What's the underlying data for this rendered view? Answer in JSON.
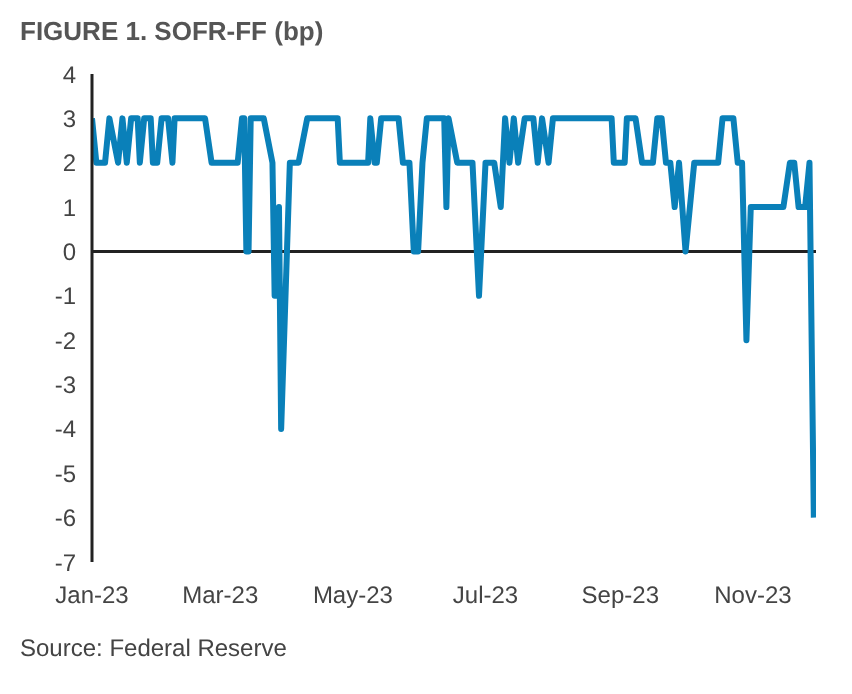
{
  "chart_data": {
    "type": "line",
    "title": "FIGURE 1. SOFR-FF (bp)",
    "x": [
      "2023-01-01",
      "2023-01-03",
      "2023-01-07",
      "2023-01-09",
      "2023-01-13",
      "2023-01-15",
      "2023-01-17",
      "2023-01-19",
      "2023-01-22",
      "2023-01-23",
      "2023-01-25",
      "2023-01-28",
      "2023-01-29",
      "2023-01-31",
      "2023-02-02",
      "2023-02-05",
      "2023-02-07",
      "2023-02-08",
      "2023-02-22",
      "2023-02-25",
      "2023-03-09",
      "2023-03-11",
      "2023-03-12",
      "2023-03-13",
      "2023-03-14",
      "2023-03-15",
      "2023-03-21",
      "2023-03-25",
      "2023-03-26",
      "2023-03-27",
      "2023-03-28",
      "2023-03-29",
      "2023-04-02",
      "2023-04-06",
      "2023-04-10",
      "2023-04-24",
      "2023-04-25",
      "2023-05-08",
      "2023-05-09",
      "2023-05-11",
      "2023-05-12",
      "2023-05-14",
      "2023-05-22",
      "2023-05-24",
      "2023-05-27",
      "2023-05-29",
      "2023-05-31",
      "2023-06-02",
      "2023-06-04",
      "2023-06-12",
      "2023-06-13",
      "2023-06-14",
      "2023-06-18",
      "2023-06-25",
      "2023-06-26",
      "2023-06-28",
      "2023-06-30",
      "2023-07-01",
      "2023-07-05",
      "2023-07-08",
      "2023-07-10",
      "2023-07-12",
      "2023-07-14",
      "2023-07-16",
      "2023-07-19",
      "2023-07-23",
      "2023-07-25",
      "2023-07-27",
      "2023-07-30",
      "2023-08-01",
      "2023-08-28",
      "2023-08-29",
      "2023-09-03",
      "2023-09-04",
      "2023-09-08",
      "2023-09-11",
      "2023-09-16",
      "2023-09-18",
      "2023-09-20",
      "2023-09-22",
      "2023-09-24",
      "2023-09-26",
      "2023-09-28",
      "2023-10-01",
      "2023-10-05",
      "2023-10-16",
      "2023-10-18",
      "2023-10-23",
      "2023-10-25",
      "2023-10-27",
      "2023-10-29",
      "2023-10-31",
      "2023-11-15",
      "2023-11-18",
      "2023-11-20",
      "2023-11-22",
      "2023-11-25",
      "2023-11-27",
      "2023-11-29"
    ],
    "series": [
      {
        "color": "#0a80b9",
        "values": [
          3,
          2,
          2,
          3,
          2,
          3,
          2,
          3,
          3,
          2,
          3,
          3,
          2,
          2,
          3,
          3,
          2,
          3,
          3,
          2,
          2,
          3,
          3,
          0,
          0,
          3,
          3,
          2,
          -1,
          -1,
          1,
          -4,
          2,
          2,
          3,
          3,
          2,
          2,
          3,
          2,
          2,
          3,
          3,
          2,
          2,
          0,
          0,
          2,
          3,
          3,
          1,
          3,
          2,
          2,
          1,
          -1,
          1,
          2,
          2,
          1,
          3,
          2,
          3,
          2,
          3,
          3,
          2,
          3,
          2,
          3,
          3,
          2,
          2,
          3,
          3,
          2,
          2,
          3,
          3,
          2,
          2,
          1,
          2,
          0,
          2,
          2,
          3,
          3,
          2,
          2,
          -2,
          1,
          1,
          2,
          2,
          1,
          1,
          2,
          -6
        ]
      }
    ],
    "xlim": [
      "2023-01-01",
      "2023-11-30"
    ],
    "xticks": [
      {
        "value": "2023-01-01",
        "label": "Jan-23"
      },
      {
        "value": "2023-03-01",
        "label": "Mar-23"
      },
      {
        "value": "2023-05-01",
        "label": "May-23"
      },
      {
        "value": "2023-07-01",
        "label": "Jul-23"
      },
      {
        "value": "2023-09-01",
        "label": "Sep-23"
      },
      {
        "value": "2023-11-01",
        "label": "Nov-23"
      }
    ],
    "ylim": [
      -7,
      4
    ],
    "yticks": [
      -7,
      -6,
      -5,
      -4,
      -3,
      -2,
      -1,
      0,
      1,
      2,
      3,
      4
    ],
    "annotations": [
      "Source: Federal Reserve"
    ],
    "ref_lines": [
      {
        "axis": "y",
        "value": 0,
        "color": "#222222"
      }
    ],
    "grid": false,
    "legend": false,
    "marker": "none",
    "line_style": "solid"
  }
}
